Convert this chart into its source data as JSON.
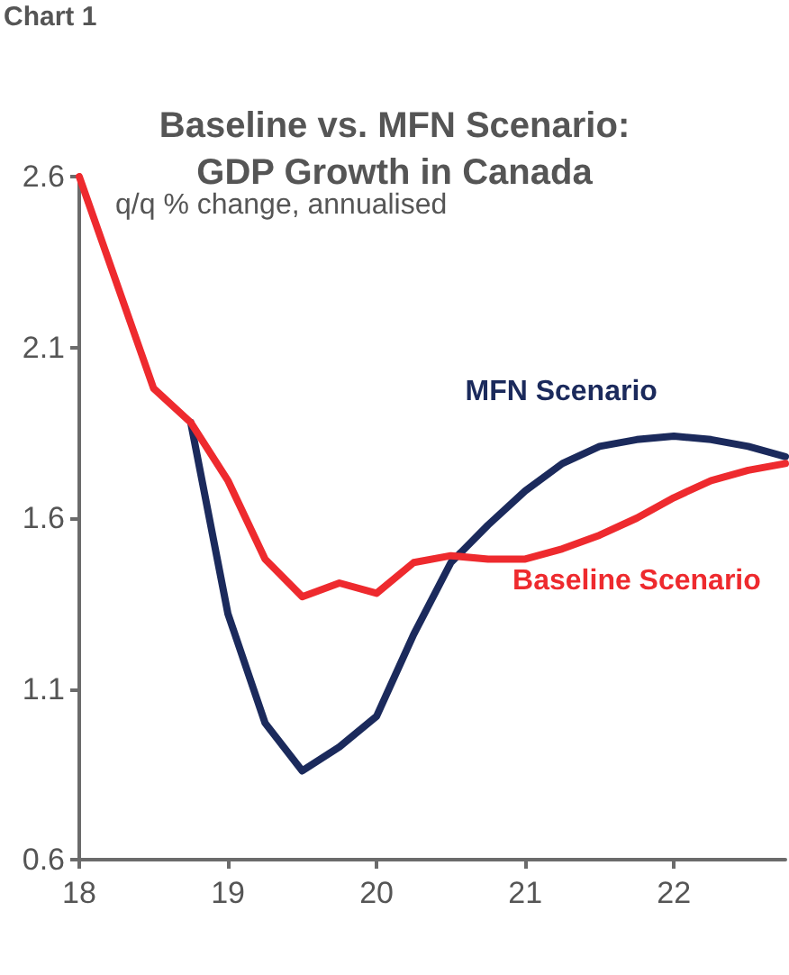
{
  "chart_data": {
    "type": "line",
    "title": "Baseline vs. MFN Scenario:\nGDP Growth in Canada",
    "ylabel": "q/q % change, annualised",
    "annotations": [
      "Chart 1"
    ],
    "x": [
      18,
      18.25,
      18.5,
      18.75,
      19,
      19.25,
      19.5,
      19.75,
      20,
      20.25,
      20.5,
      20.75,
      21,
      21.25,
      21.5,
      21.75,
      22,
      22.25,
      22.5,
      22.75
    ],
    "series": [
      {
        "name": "Baseline Scenario",
        "color": "#ee2a2e",
        "values": [
          2.6,
          2.29,
          1.98,
          1.88,
          1.71,
          1.48,
          1.37,
          1.41,
          1.38,
          1.47,
          1.49,
          1.48,
          1.48,
          1.51,
          1.55,
          1.6,
          1.66,
          1.71,
          1.74,
          1.76
        ]
      },
      {
        "name": "MFN Scenario",
        "color": "#1b2a5c",
        "values": [
          null,
          null,
          null,
          1.88,
          1.32,
          1.0,
          0.86,
          0.93,
          1.02,
          1.26,
          1.47,
          1.58,
          1.68,
          1.76,
          1.81,
          1.83,
          1.84,
          1.83,
          1.81,
          1.78
        ]
      }
    ],
    "xlim": [
      18,
      22.75
    ],
    "xticks": [
      18,
      19,
      20,
      21,
      22
    ],
    "ylim": [
      0.6,
      2.6
    ],
    "yticks": [
      0.6,
      1.1,
      1.6,
      2.1,
      2.6
    ],
    "grid": false,
    "legend": false,
    "marker": "none",
    "line_style": "solid"
  }
}
